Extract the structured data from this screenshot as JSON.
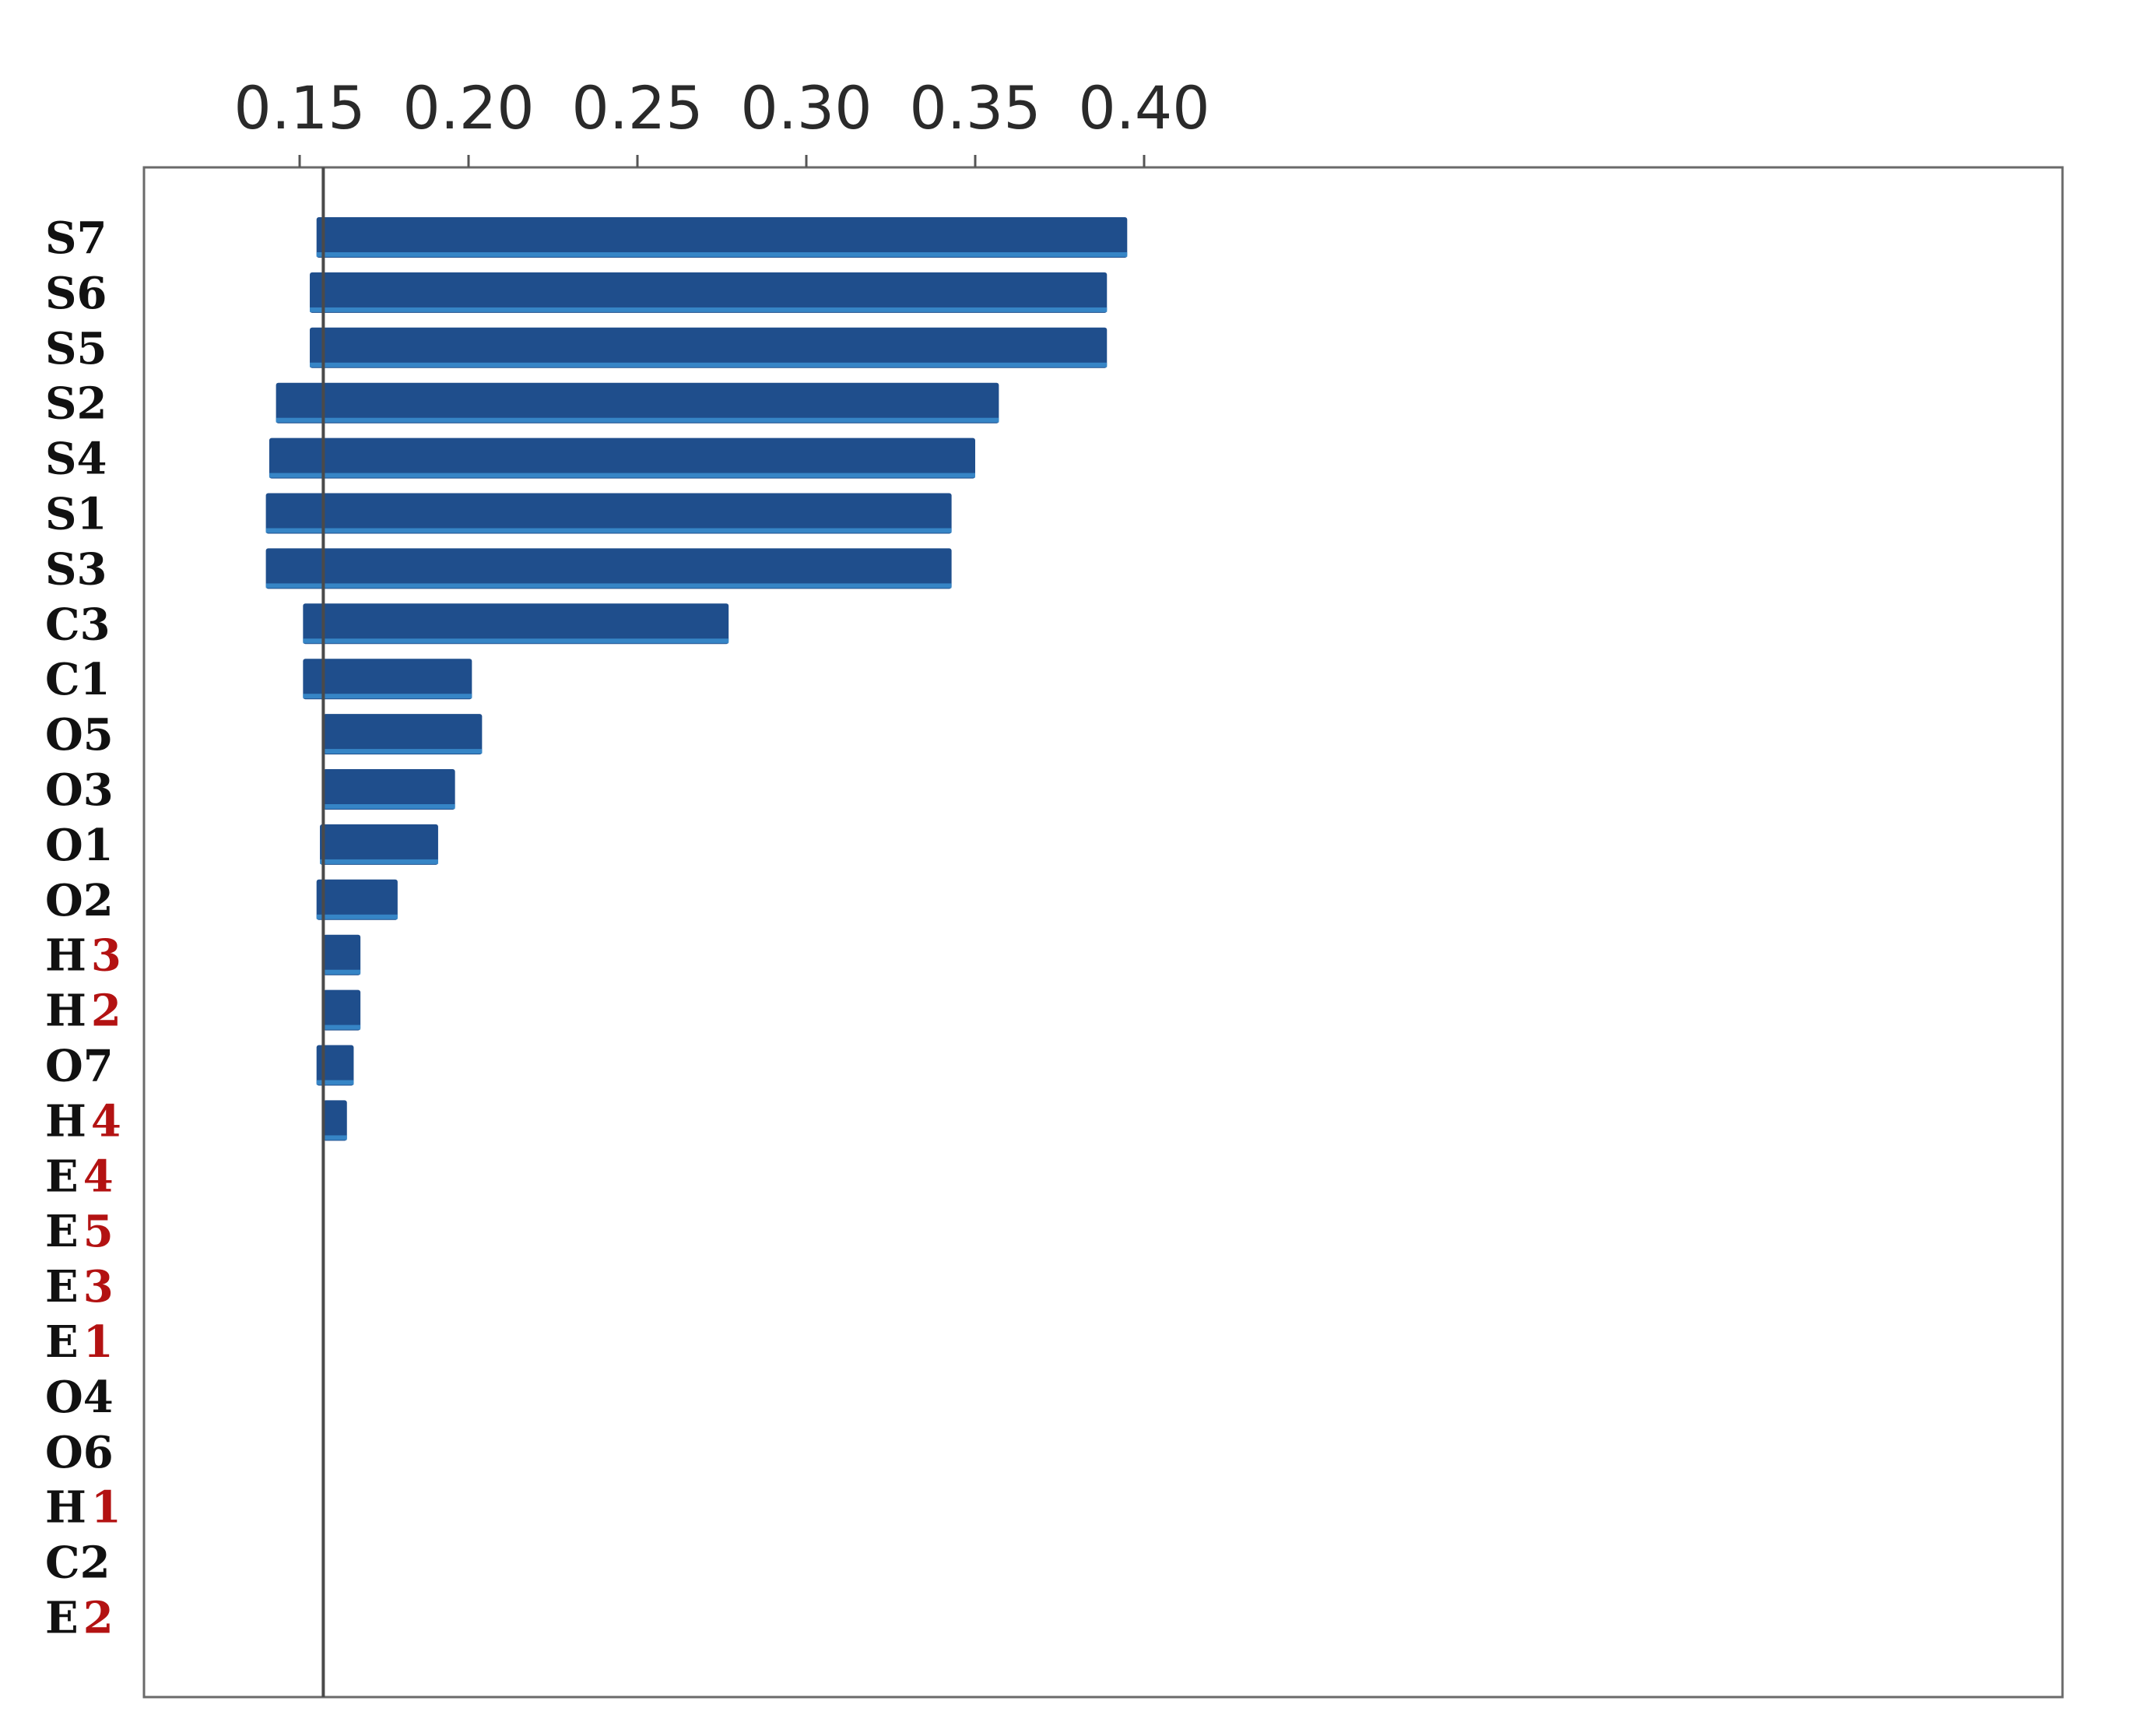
{
  "chart_data": {
    "type": "bar",
    "orientation": "horizontal",
    "title": "",
    "xlabel": "",
    "ylabel": "",
    "xlim": [
      0.12,
      0.41
    ],
    "ticks": [
      "0.15",
      "0.20",
      "0.25",
      "0.30",
      "0.35",
      "0.40"
    ],
    "tick_values": [
      0.15,
      0.2,
      0.25,
      0.3,
      0.35,
      0.4
    ],
    "axis_position": "top",
    "grid": false,
    "reference_line": 0.157,
    "bar_color": "#1f4e8c",
    "bar_highlight": "#3b8fd0",
    "label_color_primary": "#111111",
    "label_color_secondary": "#b31212",
    "categories": [
      "S7",
      "S6",
      "S5",
      "S2",
      "S4",
      "S1",
      "S3",
      "C3",
      "C1",
      "O5",
      "O3",
      "O1",
      "O2",
      "H3",
      "H2",
      "O7",
      "H4",
      "E4",
      "E5",
      "E3",
      "E1",
      "O4",
      "O6",
      "H1",
      "C2",
      "E2"
    ],
    "starts": [
      0.155,
      0.153,
      0.153,
      0.143,
      0.141,
      0.14,
      0.14,
      0.151,
      0.151,
      0.157,
      0.157,
      0.156,
      0.155,
      0.157,
      0.157,
      0.155,
      0.157,
      null,
      null,
      null,
      null,
      null,
      null,
      null,
      null,
      null
    ],
    "values": [
      0.395,
      0.389,
      0.389,
      0.357,
      0.35,
      0.343,
      0.343,
      0.277,
      0.201,
      0.204,
      0.196,
      0.191,
      0.179,
      0.168,
      0.168,
      0.166,
      0.164,
      null,
      null,
      null,
      null,
      null,
      null,
      null,
      null,
      null
    ]
  }
}
